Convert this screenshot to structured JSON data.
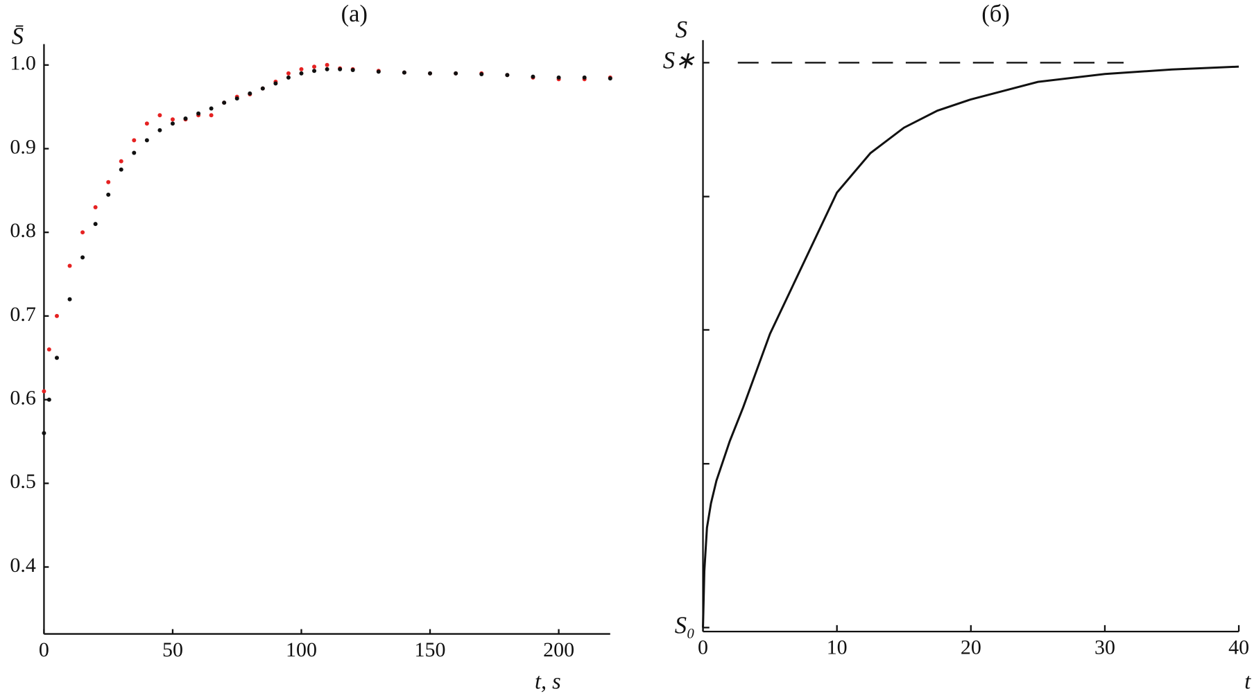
{
  "chart_data": [
    {
      "type": "scatter",
      "title": "(a)",
      "ylabel": "S̄",
      "xlabel": "t, s",
      "x": [
        0,
        2,
        5,
        10,
        15,
        20,
        25,
        30,
        35,
        40,
        45,
        50,
        55,
        60,
        65,
        70,
        75,
        80,
        85,
        90,
        95,
        100,
        105,
        110,
        115,
        120,
        130,
        140,
        150,
        160,
        170,
        180,
        190,
        200,
        210,
        220
      ],
      "series": [
        {
          "color": "#e52222",
          "values": [
            0.61,
            0.66,
            0.7,
            0.76,
            0.8,
            0.83,
            0.86,
            0.885,
            0.91,
            0.93,
            0.94,
            0.935,
            0.935,
            0.94,
            0.94,
            0.955,
            0.962,
            0.965,
            0.972,
            0.98,
            0.99,
            0.995,
            0.998,
            1.0,
            0.996,
            0.995,
            0.993,
            0.991,
            0.99,
            0.99,
            0.99,
            0.988,
            0.985,
            0.983,
            0.983,
            0.985
          ]
        },
        {
          "color": "#111111",
          "values": [
            0.56,
            0.6,
            0.65,
            0.72,
            0.77,
            0.81,
            0.845,
            0.875,
            0.895,
            0.91,
            0.922,
            0.93,
            0.936,
            0.942,
            0.948,
            0.955,
            0.96,
            0.966,
            0.972,
            0.978,
            0.985,
            0.99,
            0.993,
            0.995,
            0.995,
            0.994,
            0.992,
            0.991,
            0.99,
            0.99,
            0.989,
            0.988,
            0.986,
            0.985,
            0.985,
            0.984
          ]
        }
      ],
      "xlim": [
        0,
        220
      ],
      "ylim": [
        0.32,
        1.025
      ],
      "xticks": [
        0,
        50,
        100,
        150,
        200
      ],
      "yticks": [
        0.4,
        0.5,
        0.6,
        0.7,
        0.8,
        0.9,
        {
          "value": 1.0,
          "label": "1.0"
        }
      ]
    },
    {
      "type": "line",
      "title": "(б)",
      "ylabel": "S",
      "xlabel": "t",
      "color": "#111111",
      "x": [
        0,
        0.1,
        0.3,
        0.6,
        1,
        2,
        3,
        5,
        7,
        10,
        12.5,
        15,
        17.5,
        20,
        25,
        30,
        35,
        40
      ],
      "values": [
        0,
        0.1,
        0.177,
        0.22,
        0.26,
        0.33,
        0.39,
        0.52,
        0.62,
        0.77,
        0.84,
        0.885,
        0.915,
        0.935,
        0.966,
        0.98,
        0.988,
        0.993
      ],
      "xlim": [
        0,
        40
      ],
      "ylim": [
        -0.007,
        1.04
      ],
      "xticks": [
        0,
        10,
        20,
        30,
        40
      ],
      "yticks": [
        {
          "value": 0,
          "label": "S₀"
        },
        {
          "value": 1,
          "label": "S∗"
        }
      ],
      "minor_yticks": [
        0.29,
        0.527,
        0.763
      ],
      "reference_line": {
        "y": 1,
        "x": [
          2.6,
          31.4
        ]
      }
    }
  ]
}
